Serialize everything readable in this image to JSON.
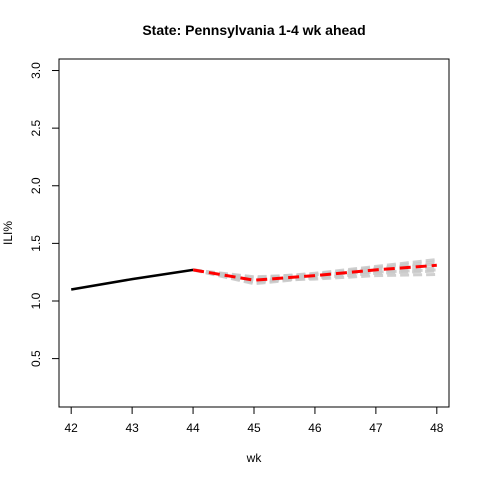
{
  "chart_data": {
    "type": "line",
    "title": "State: Pennsylvania 1-4 wk ahead",
    "xlabel": "wk",
    "ylabel": "ILI%",
    "xlim": [
      41.8,
      48.2
    ],
    "ylim": [
      0.08,
      3.1
    ],
    "x_ticks": [
      42,
      43,
      44,
      45,
      46,
      47,
      48
    ],
    "y_ticks": [
      0.5,
      1.0,
      1.5,
      2.0,
      2.5,
      3.0
    ],
    "y_tick_labels": [
      "0.5",
      "1.0",
      "1.5",
      "2.0",
      "2.5",
      "3.0"
    ],
    "grid": false,
    "legend": "none",
    "series": [
      {
        "style": "observed",
        "color": "#000000",
        "points": [
          [
            42,
            1.1
          ],
          [
            43,
            1.19
          ],
          [
            44,
            1.27
          ]
        ]
      },
      {
        "style": "forecast-mean",
        "color": "#ff0000",
        "dashed": true,
        "points": [
          [
            44,
            1.27
          ],
          [
            45,
            1.18
          ],
          [
            46,
            1.22
          ],
          [
            47,
            1.27
          ],
          [
            48,
            1.31
          ]
        ]
      }
    ],
    "ensemble": {
      "color": "#c8c8c8",
      "dashed": true,
      "members": [
        [
          [
            44,
            1.27
          ],
          [
            45,
            1.15
          ],
          [
            46,
            1.2
          ],
          [
            47,
            1.24
          ],
          [
            48,
            1.26
          ]
        ],
        [
          [
            44,
            1.27
          ],
          [
            45,
            1.16
          ],
          [
            46,
            1.21
          ],
          [
            47,
            1.26
          ],
          [
            48,
            1.29
          ]
        ],
        [
          [
            44,
            1.27
          ],
          [
            45,
            1.17
          ],
          [
            46,
            1.22
          ],
          [
            47,
            1.28
          ],
          [
            48,
            1.32
          ]
        ],
        [
          [
            44,
            1.27
          ],
          [
            45,
            1.19
          ],
          [
            46,
            1.23
          ],
          [
            47,
            1.29
          ],
          [
            48,
            1.34
          ]
        ],
        [
          [
            44,
            1.27
          ],
          [
            45,
            1.2
          ],
          [
            46,
            1.24
          ],
          [
            47,
            1.3
          ],
          [
            48,
            1.36
          ]
        ],
        [
          [
            44,
            1.27
          ],
          [
            45,
            1.18
          ],
          [
            46,
            1.19
          ],
          [
            47,
            1.22
          ],
          [
            48,
            1.23
          ]
        ],
        [
          [
            44,
            1.27
          ],
          [
            45,
            1.21
          ],
          [
            46,
            1.23
          ],
          [
            47,
            1.25
          ],
          [
            48,
            1.27
          ]
        ]
      ]
    }
  }
}
